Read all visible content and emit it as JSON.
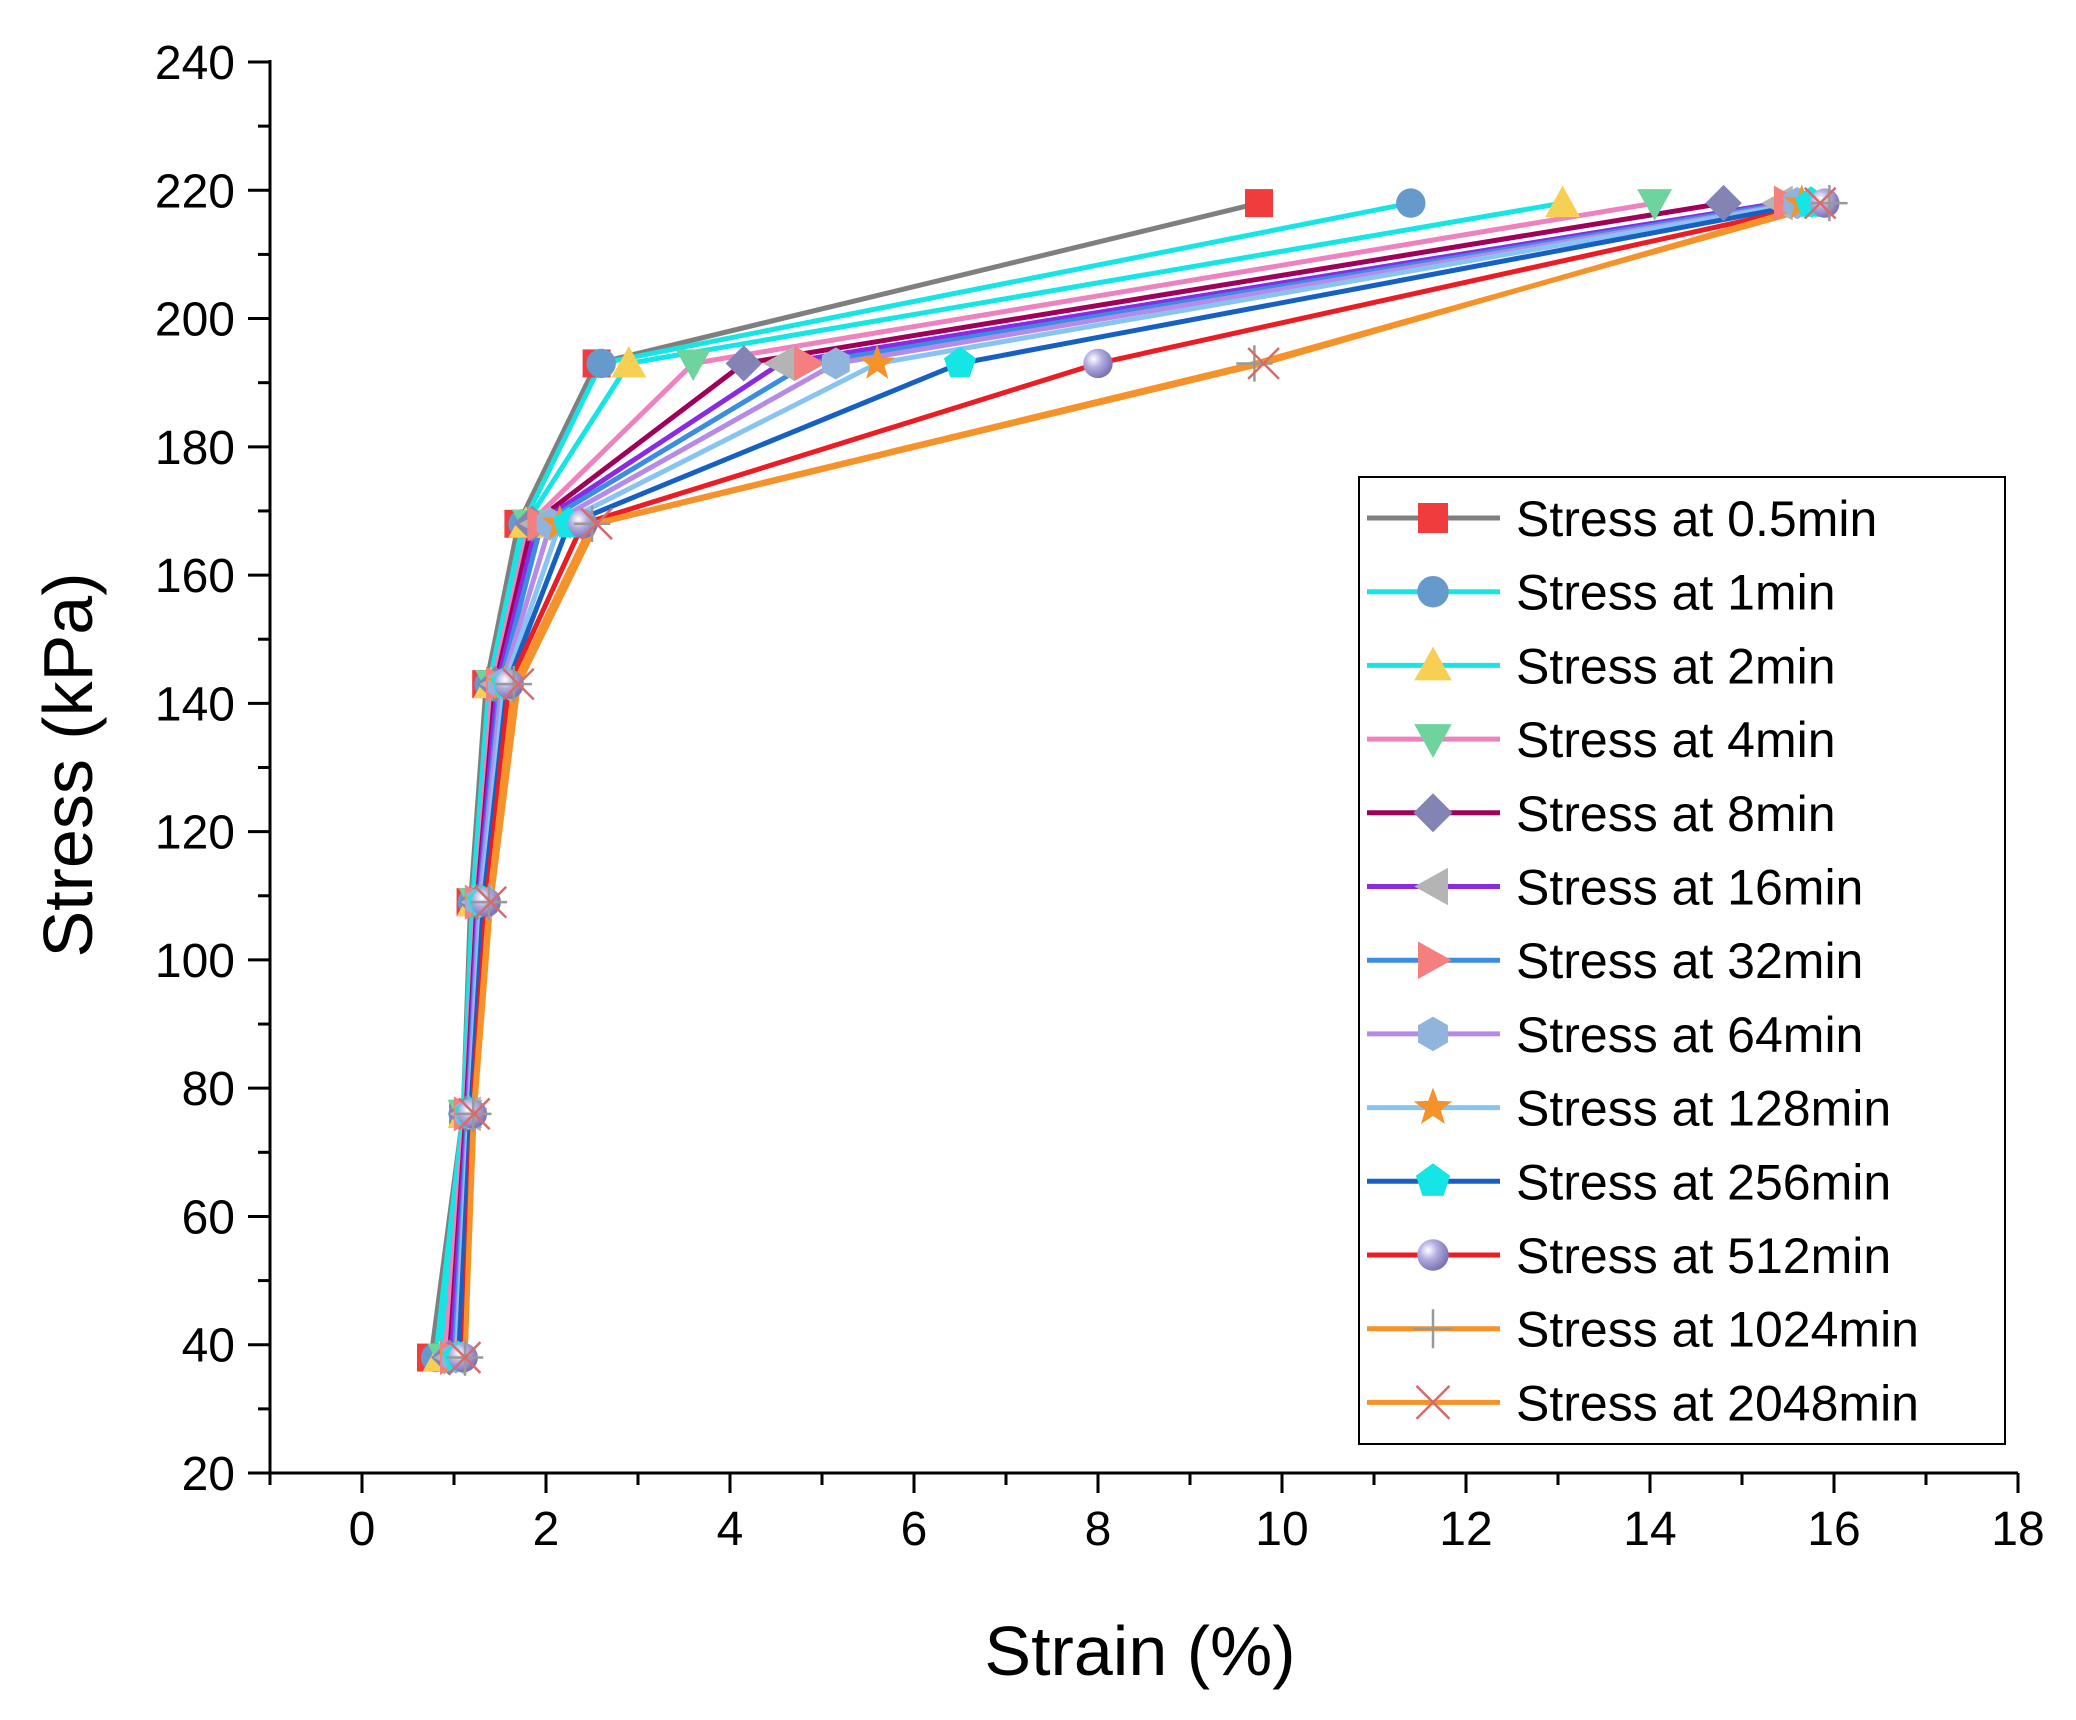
{
  "chart_data": {
    "type": "line",
    "xlabel": "Strain (%)",
    "ylabel": "Stress (kPa)",
    "xlim": [
      -1,
      18
    ],
    "ylim": [
      20,
      240
    ],
    "xticks": [
      0,
      2,
      4,
      6,
      8,
      10,
      12,
      14,
      16,
      18
    ],
    "yticks": [
      20,
      40,
      60,
      80,
      100,
      120,
      140,
      160,
      180,
      200,
      220,
      240
    ],
    "legend_position": "right",
    "y": [
      38,
      76,
      109,
      143,
      168,
      193,
      218
    ],
    "series": [
      {
        "name": "Stress at 0.5min",
        "line_color": "#7f7f7f",
        "marker": "square",
        "marker_color": "#f03c3c",
        "x": [
          0.75,
          1.1,
          1.18,
          1.35,
          1.7,
          2.55,
          9.75
        ]
      },
      {
        "name": "Stress at 1min",
        "line_color": "#16e5e5",
        "marker": "circle",
        "marker_color": "#6699cc",
        "x": [
          0.8,
          1.1,
          1.2,
          1.38,
          1.75,
          2.6,
          11.4
        ]
      },
      {
        "name": "Stress at 2min",
        "line_color": "#16e5e5",
        "marker": "triangle-up",
        "marker_color": "#f7cf52",
        "x": [
          0.85,
          1.12,
          1.22,
          1.4,
          1.78,
          2.9,
          13.05
        ]
      },
      {
        "name": "Stress at 4min",
        "line_color": "#ee82be",
        "marker": "triangle-down",
        "marker_color": "#6fd39e",
        "x": [
          0.9,
          1.12,
          1.24,
          1.42,
          1.82,
          3.6,
          14.05
        ]
      },
      {
        "name": "Stress at 8min",
        "line_color": "#a0005a",
        "marker": "diamond",
        "marker_color": "#8484b4",
        "x": [
          0.95,
          1.13,
          1.25,
          1.45,
          1.85,
          4.15,
          14.8
        ]
      },
      {
        "name": "Stress at 16min",
        "line_color": "#8a2be2",
        "marker": "triangle-left",
        "marker_color": "#b4b4b4",
        "x": [
          0.97,
          1.14,
          1.26,
          1.47,
          1.9,
          4.55,
          15.4
        ]
      },
      {
        "name": "Stress at 32min",
        "line_color": "#3a8de0",
        "marker": "triangle-right",
        "marker_color": "#f57f7f",
        "x": [
          1.0,
          1.15,
          1.27,
          1.5,
          1.95,
          4.85,
          15.5
        ]
      },
      {
        "name": "Stress at 64min",
        "line_color": "#b68be8",
        "marker": "hexagon",
        "marker_color": "#90b4dc",
        "x": [
          1.02,
          1.16,
          1.28,
          1.52,
          2.05,
          5.15,
          15.6
        ]
      },
      {
        "name": "Stress at 128min",
        "line_color": "#88c4f2",
        "marker": "star",
        "marker_color": "#f5922a",
        "x": [
          1.03,
          1.17,
          1.3,
          1.55,
          2.15,
          5.6,
          15.65
        ]
      },
      {
        "name": "Stress at 256min",
        "line_color": "#1660c4",
        "marker": "pentagon",
        "marker_color": "#16e5e5",
        "x": [
          1.05,
          1.18,
          1.32,
          1.58,
          2.25,
          6.5,
          15.75
        ]
      },
      {
        "name": "Stress at 512min",
        "line_color": "#ec1c24",
        "marker": "sphere",
        "marker_color": "#9a8fd0",
        "x": [
          1.1,
          1.2,
          1.35,
          1.6,
          2.4,
          8.0,
          15.9
        ]
      },
      {
        "name": "Stress at 1024min",
        "line_color": "#f5922a",
        "marker": "plus",
        "marker_color": "#999999",
        "x": [
          1.12,
          1.21,
          1.38,
          1.65,
          2.5,
          9.7,
          15.95
        ]
      },
      {
        "name": "Stress at 2048min",
        "line_color": "#f5922a",
        "marker": "x",
        "marker_color": "#d96a6a",
        "x": [
          1.12,
          1.22,
          1.4,
          1.7,
          2.55,
          9.8,
          15.85
        ]
      }
    ]
  }
}
